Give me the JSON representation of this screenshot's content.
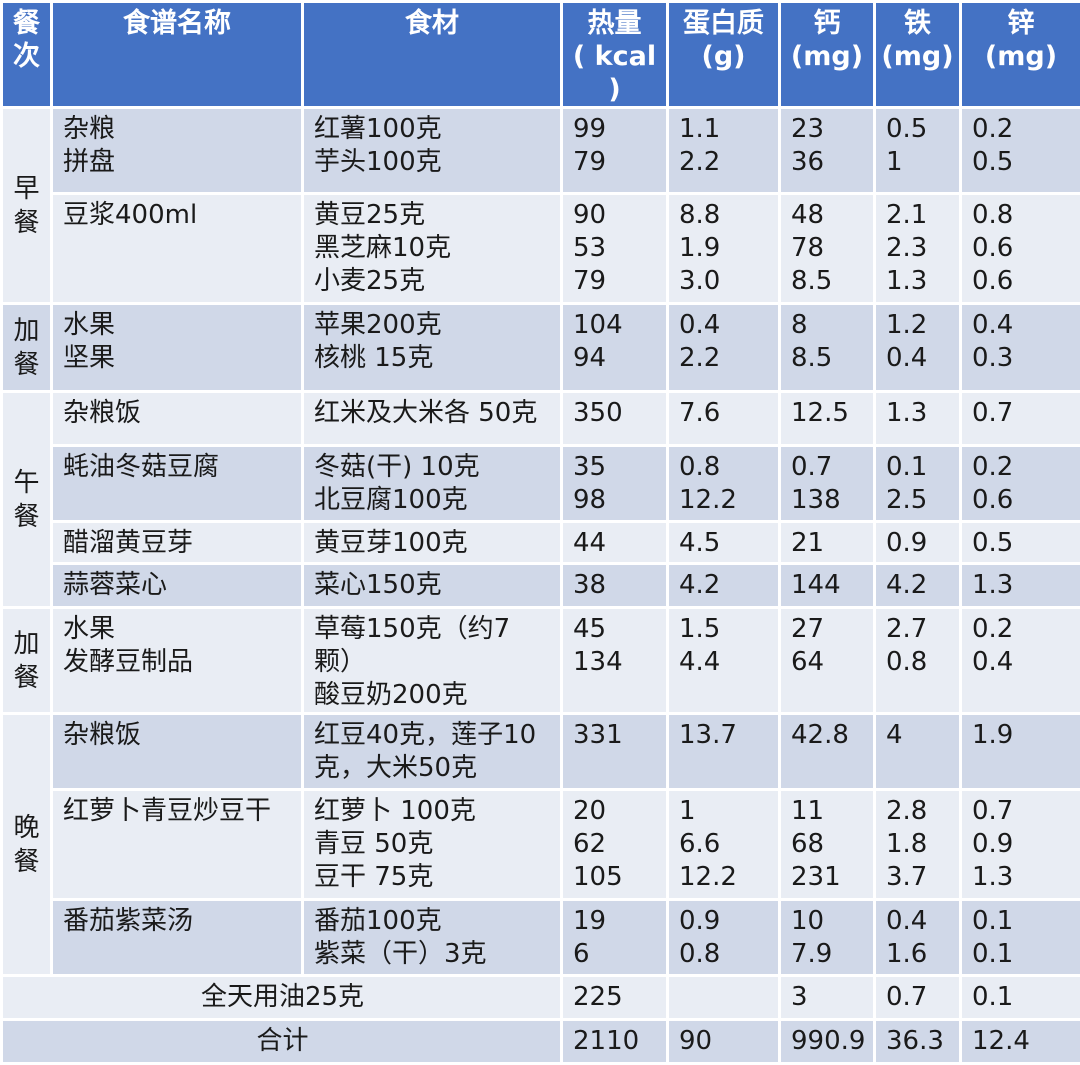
{
  "headers": {
    "meal": "餐\n次",
    "recipe": "食谱名称",
    "ingredients": "食材",
    "calories": "热量\n( kcal )",
    "protein": "蛋白质\n(g)",
    "calcium": "钙\n(mg)",
    "iron": "铁\n(mg)",
    "zinc": "锌\n(mg)"
  },
  "meals": {
    "breakfast": "早\n餐",
    "snack1": "加\n餐",
    "lunch": "午\n餐",
    "snack2": "加\n餐",
    "dinner": "晚\n餐"
  },
  "rows": [
    {
      "recipe": "杂粮\n拼盘",
      "ingredients": "红薯100克\n芋头100克",
      "calories": "99\n79",
      "protein": "1.1\n2.2",
      "calcium": "23\n36",
      "iron": "0.5\n1",
      "zinc": "0.2\n0.5"
    },
    {
      "recipe": "豆浆400ml",
      "ingredients": "黄豆25克\n黑芝麻10克\n小麦25克",
      "calories": "90\n53\n79",
      "protein": "8.8\n1.9\n3.0",
      "calcium": "48\n78\n8.5",
      "iron": "2.1\n2.3\n1.3",
      "zinc": "0.8\n0.6\n0.6"
    },
    {
      "recipe": "水果\n坚果",
      "ingredients": "苹果200克\n核桃 15克",
      "calories": "104\n94",
      "protein": "0.4\n2.2",
      "calcium": "8\n8.5",
      "iron": "1.2\n0.4",
      "zinc": "0.4\n0.3"
    },
    {
      "recipe": "杂粮饭",
      "ingredients": "红米及大米各 50克",
      "calories": "350",
      "protein": "7.6",
      "calcium": "12.5",
      "iron": "1.3",
      "zinc": "0.7"
    },
    {
      "recipe": "蚝油冬菇豆腐",
      "ingredients": "冬菇(干) 10克\n北豆腐100克",
      "calories": "35\n98",
      "protein": "0.8\n12.2",
      "calcium": "0.7\n138",
      "iron": "0.1\n2.5",
      "zinc": "0.2\n0.6"
    },
    {
      "recipe": "醋溜黄豆芽",
      "ingredients": "黄豆芽100克",
      "calories": "44",
      "protein": "4.5",
      "calcium": "21",
      "iron": "0.9",
      "zinc": "0.5"
    },
    {
      "recipe": "蒜蓉菜心",
      "ingredients": "菜心150克",
      "calories": "38",
      "protein": "4.2",
      "calcium": "144",
      "iron": "4.2",
      "zinc": "1.3"
    },
    {
      "recipe": "水果\n发酵豆制品",
      "ingredients": "草莓150克（约7颗）\n酸豆奶200克",
      "calories": "45\n134",
      "protein": "1.5\n4.4",
      "calcium": "27\n64",
      "iron": "2.7\n0.8",
      "zinc": "0.2\n0.4"
    },
    {
      "recipe": "杂粮饭",
      "ingredients": "红豆40克，莲子10\n克，大米50克",
      "calories": "331",
      "protein": "13.7",
      "calcium": "42.8",
      "iron": "4",
      "zinc": "1.9"
    },
    {
      "recipe": "红萝卜青豆炒豆干",
      "ingredients": "红萝卜 100克\n青豆     50克\n豆干 75克",
      "calories": "20\n62\n105",
      "protein": "1\n6.6\n12.2",
      "calcium": "11\n68\n231",
      "iron": "2.8\n1.8\n3.7",
      "zinc": "0.7\n0.9\n1.3"
    },
    {
      "recipe": "番茄紫菜汤",
      "ingredients": "番茄100克\n紫菜（干）3克",
      "calories": "19\n6",
      "protein": "0.9\n0.8",
      "calcium": "10\n7.9",
      "iron": "0.4\n1.6",
      "zinc": "0.1\n0.1"
    }
  ],
  "oil": {
    "label": "全天用油25克",
    "calories": "225",
    "protein": "",
    "calcium": "3",
    "iron": "0.7",
    "zinc": "0.1"
  },
  "total": {
    "label": "合计",
    "calories": "2110",
    "protein": "90",
    "calcium": "990.9",
    "iron": "36.3",
    "zinc": "12.4"
  },
  "colors": {
    "header": "#4472c4",
    "row_dark": "#d0d8e8",
    "row_light": "#e9edf4"
  }
}
